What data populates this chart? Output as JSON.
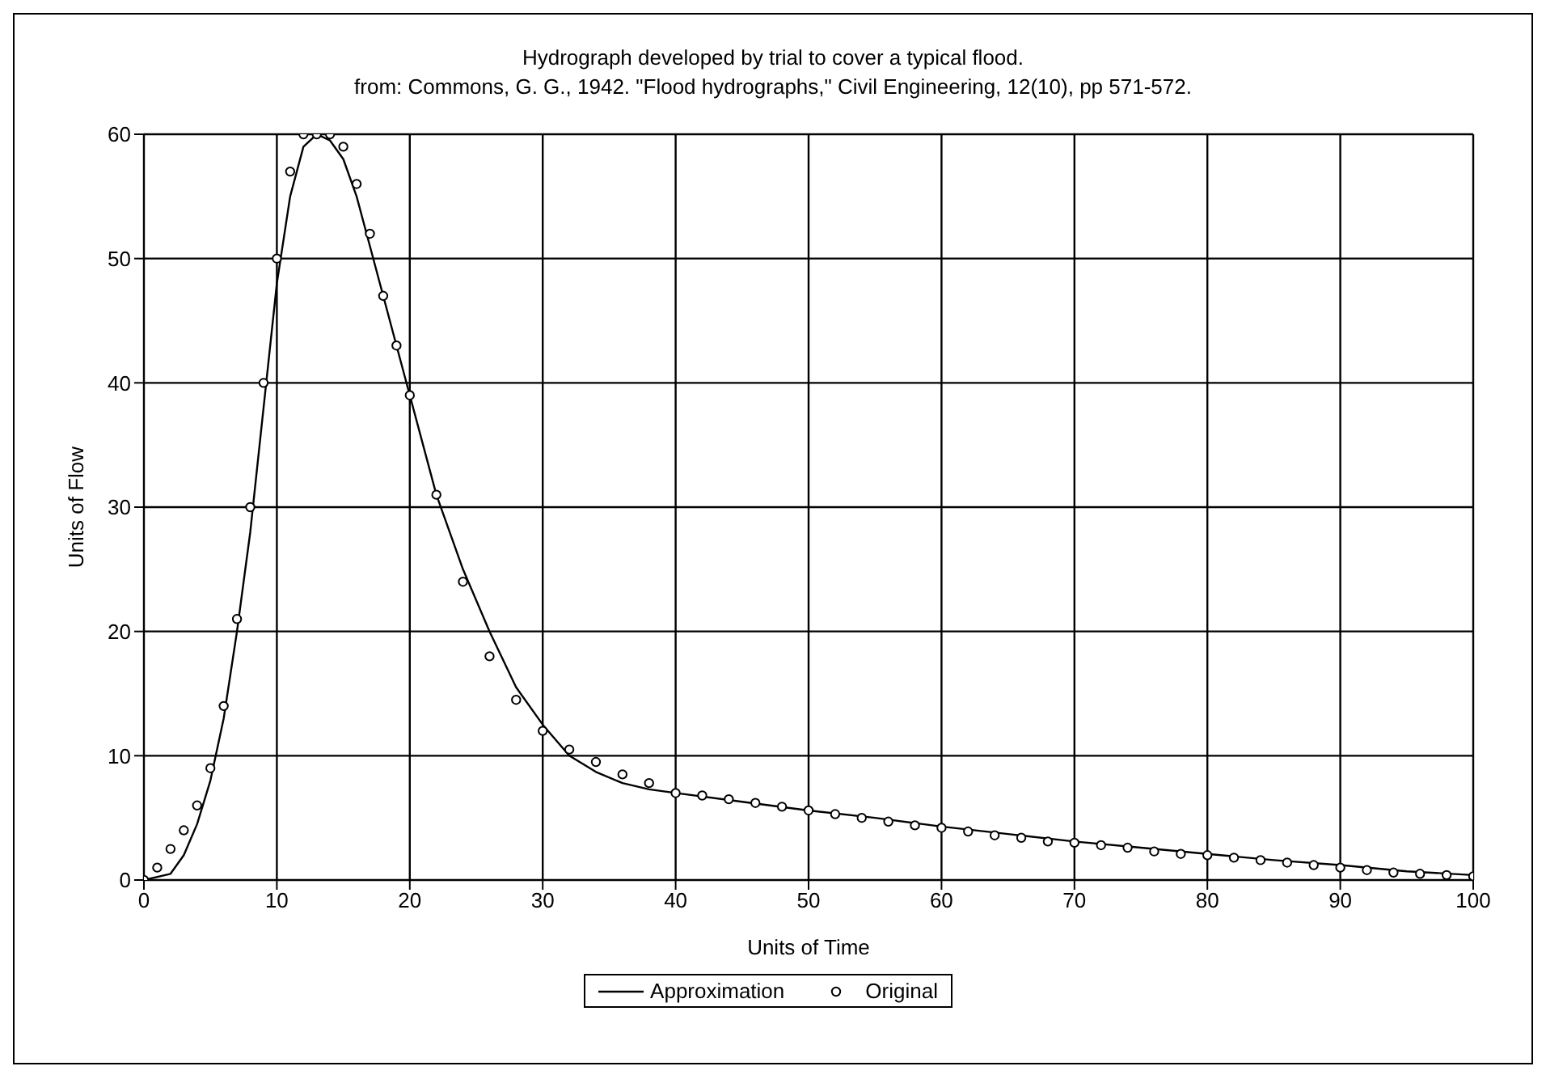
{
  "chart_data": {
    "type": "line",
    "title": "Hydrograph developed by trial to cover a typical flood.",
    "subtitle": "from: Commons, G. G., 1942.  \"Flood hydrographs,\" Civil Engineering, 12(10), pp 571-572.",
    "xlabel": "Units of Time",
    "ylabel": "Units of Flow",
    "xlim": [
      0,
      100
    ],
    "ylim": [
      0,
      60
    ],
    "xticks": [
      0,
      10,
      20,
      30,
      40,
      50,
      60,
      70,
      80,
      90,
      100
    ],
    "yticks": [
      0,
      10,
      20,
      30,
      40,
      50,
      60
    ],
    "grid": true,
    "legend": "bottom",
    "series": [
      {
        "name": "Approximation",
        "color": "#000000",
        "marker": "none",
        "line_style": "solid",
        "x": [
          0,
          2,
          3,
          4,
          5,
          6,
          7,
          8,
          9,
          10,
          11,
          12,
          13,
          14,
          15,
          16,
          17,
          18,
          19,
          20,
          22,
          24,
          26,
          28,
          30,
          32,
          34,
          36,
          38,
          40,
          45,
          50,
          55,
          60,
          65,
          70,
          75,
          80,
          85,
          90,
          95,
          100
        ],
        "values": [
          0,
          0.5,
          2,
          4.5,
          8,
          13,
          20,
          28,
          38,
          48,
          55,
          59,
          60,
          59.5,
          58,
          55,
          51,
          47,
          43,
          39,
          31,
          25,
          20,
          15.5,
          12.5,
          10,
          8.7,
          7.8,
          7.3,
          7,
          6.3,
          5.6,
          5,
          4.3,
          3.7,
          3.1,
          2.6,
          2.1,
          1.6,
          1.2,
          0.7,
          0.4
        ]
      },
      {
        "name": "Original",
        "type": "scatter",
        "color": "#000000",
        "marker": "circle",
        "x": [
          0,
          1,
          2,
          3,
          4,
          5,
          6,
          7,
          8,
          9,
          10,
          11,
          12,
          13,
          14,
          15,
          16,
          17,
          18,
          19,
          20,
          22,
          24,
          26,
          28,
          30,
          32,
          34,
          36,
          38,
          40,
          42,
          44,
          46,
          48,
          50,
          52,
          54,
          56,
          58,
          60,
          62,
          64,
          66,
          68,
          70,
          72,
          74,
          76,
          78,
          80,
          82,
          84,
          86,
          88,
          90,
          92,
          94,
          96,
          98,
          100
        ],
        "values": [
          0,
          1,
          2.5,
          4,
          6,
          9,
          14,
          21,
          30,
          40,
          50,
          57,
          60,
          60,
          60,
          59,
          56,
          52,
          47,
          43,
          39,
          31,
          24,
          18,
          14.5,
          12,
          10.5,
          9.5,
          8.5,
          7.8,
          7,
          6.8,
          6.5,
          6.2,
          5.9,
          5.6,
          5.3,
          5,
          4.7,
          4.4,
          4.2,
          3.9,
          3.6,
          3.4,
          3.1,
          3,
          2.8,
          2.6,
          2.3,
          2.1,
          2,
          1.8,
          1.6,
          1.4,
          1.2,
          1,
          0.8,
          0.6,
          0.5,
          0.4,
          0.3
        ]
      }
    ]
  }
}
